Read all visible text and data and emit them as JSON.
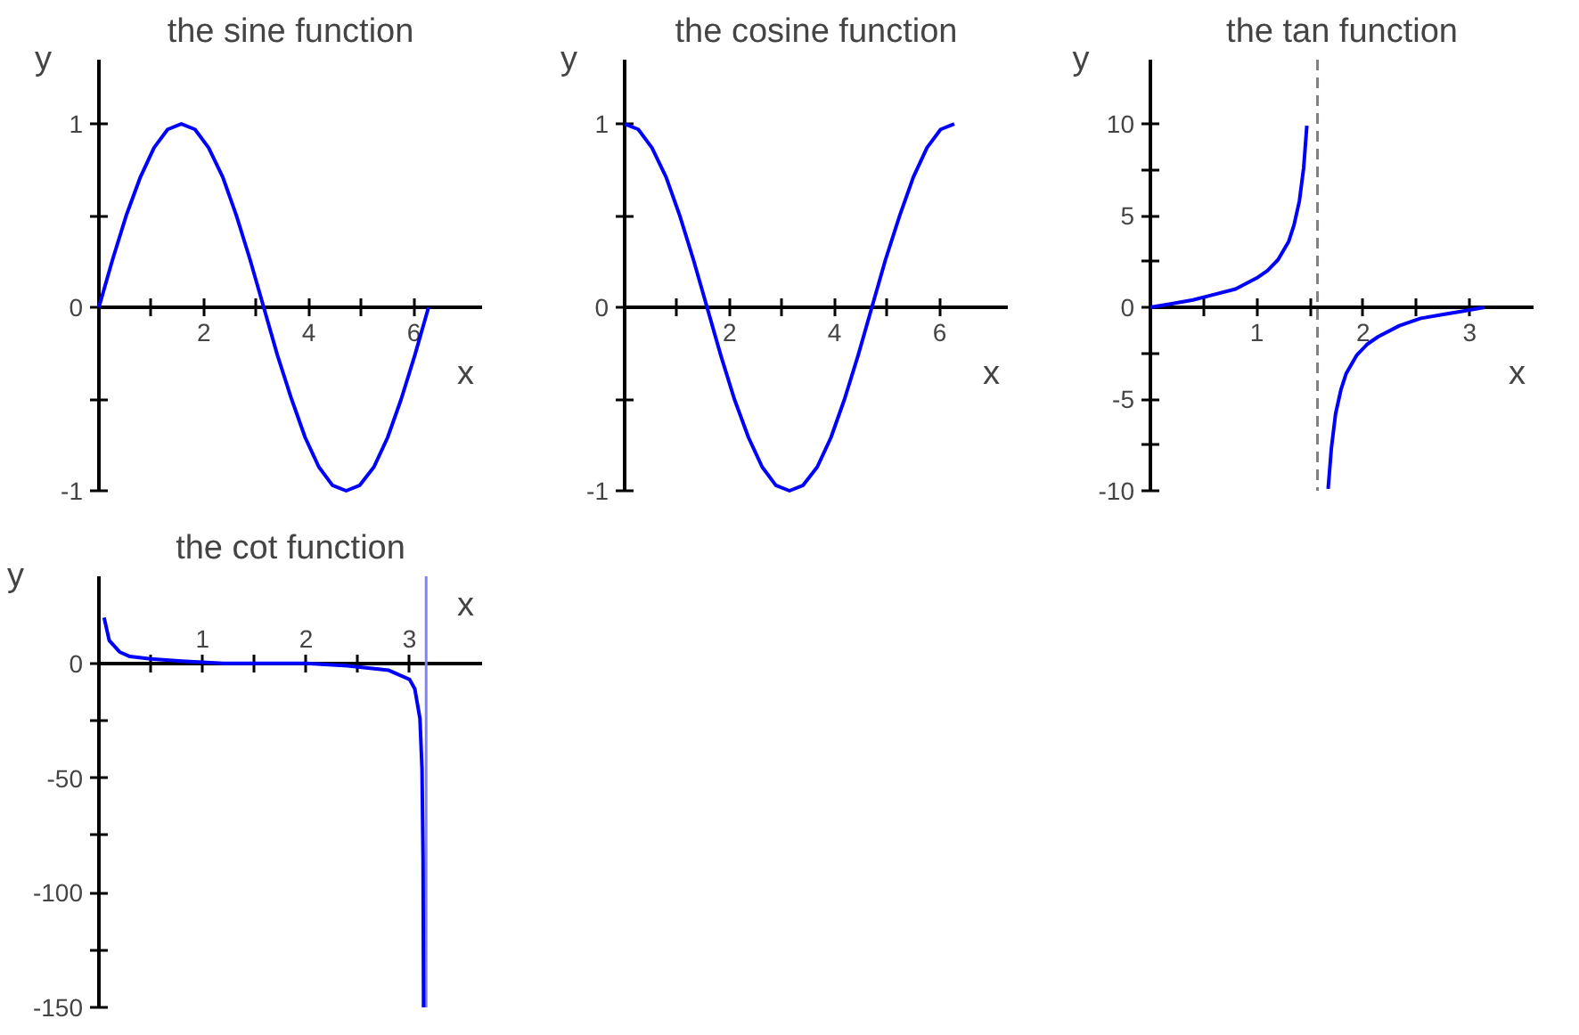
{
  "chart_data": [
    {
      "type": "line",
      "title": "the sine function",
      "xlabel": "x",
      "ylabel": "y",
      "xlim": [
        0,
        7.3
      ],
      "ylim": [
        -1,
        1.35
      ],
      "xticks": [
        {
          "value": 1,
          "label": null
        },
        2,
        {
          "value": 3,
          "label": null
        },
        4,
        {
          "value": 5,
          "label": null
        },
        6
      ],
      "yticks": [
        -1,
        {
          "value": -0.5,
          "label": null
        },
        0,
        {
          "value": 0.5,
          "label": null
        },
        1
      ],
      "series": [
        {
          "color": "#0000ff",
          "x": [
            0,
            0.26,
            0.52,
            0.79,
            1.05,
            1.31,
            1.57,
            1.83,
            2.09,
            2.36,
            2.62,
            2.88,
            3.14,
            3.4,
            3.67,
            3.93,
            4.19,
            4.45,
            4.71,
            4.97,
            5.24,
            5.5,
            5.76,
            6.02,
            6.28
          ],
          "values": [
            0,
            0.26,
            0.5,
            0.71,
            0.87,
            0.97,
            1,
            0.97,
            0.87,
            0.71,
            0.5,
            0.26,
            0,
            -0.26,
            -0.5,
            -0.71,
            -0.87,
            -0.97,
            -1,
            -0.97,
            -0.87,
            -0.71,
            -0.5,
            -0.26,
            0
          ]
        }
      ]
    },
    {
      "type": "line",
      "title": "the cosine function",
      "xlabel": "x",
      "ylabel": "y",
      "xlim": [
        0,
        7.3
      ],
      "ylim": [
        -1,
        1.35
      ],
      "xticks": [
        {
          "value": 1,
          "label": null
        },
        2,
        {
          "value": 3,
          "label": null
        },
        4,
        {
          "value": 5,
          "label": null
        },
        6
      ],
      "yticks": [
        -1,
        {
          "value": -0.5,
          "label": null
        },
        0,
        {
          "value": 0.5,
          "label": null
        },
        1
      ],
      "series": [
        {
          "color": "#0000ff",
          "x": [
            0,
            0.26,
            0.52,
            0.79,
            1.05,
            1.31,
            1.57,
            1.83,
            2.09,
            2.36,
            2.62,
            2.88,
            3.14,
            3.4,
            3.67,
            3.93,
            4.19,
            4.45,
            4.71,
            4.97,
            5.24,
            5.5,
            5.76,
            6.02,
            6.28
          ],
          "values": [
            1,
            0.97,
            0.87,
            0.71,
            0.5,
            0.26,
            0,
            -0.26,
            -0.5,
            -0.71,
            -0.87,
            -0.97,
            -1,
            -0.97,
            -0.87,
            -0.71,
            -0.5,
            -0.26,
            0,
            0.26,
            0.5,
            0.71,
            0.87,
            0.97,
            1
          ]
        }
      ]
    },
    {
      "type": "line",
      "title": "the tan function",
      "xlabel": "x",
      "ylabel": "y",
      "xlim": [
        0,
        3.6
      ],
      "ylim": [
        -10,
        13.5
      ],
      "xticks": [
        {
          "value": 0.5,
          "label": null
        },
        1,
        {
          "value": 1.5,
          "label": null
        },
        2,
        {
          "value": 2.5,
          "label": null
        },
        3
      ],
      "yticks": [
        -10,
        {
          "value": -7.5,
          "label": null
        },
        -5,
        {
          "value": -2.5,
          "label": null
        },
        0,
        {
          "value": 2.5,
          "label": null
        },
        5,
        {
          "value": 7.5,
          "label": null
        },
        10
      ],
      "ref_lines": [
        {
          "axis": "x",
          "value": 1.57,
          "color": "#808080",
          "line_style": "dashed"
        }
      ],
      "series": [
        {
          "color": "#0000ff",
          "x": [
            0,
            0.2,
            0.4,
            0.6,
            0.8,
            1.0,
            1.1,
            1.2,
            1.3,
            1.35,
            1.4,
            1.44,
            1.47,
            1.57,
            1.67,
            1.7,
            1.74,
            1.79,
            1.84,
            1.94,
            2.04,
            2.14,
            2.34,
            2.54,
            2.74,
            2.94,
            3.14
          ],
          "values": [
            0,
            0.2,
            0.4,
            0.7,
            1.0,
            1.6,
            2.0,
            2.6,
            3.6,
            4.5,
            5.8,
            7.6,
            9.9,
            null,
            -9.9,
            -7.7,
            -5.8,
            -4.5,
            -3.6,
            -2.6,
            -2.0,
            -1.6,
            -1.0,
            -0.6,
            -0.4,
            -0.2,
            0
          ]
        }
      ]
    },
    {
      "type": "line",
      "title": "the cot function",
      "xlabel": "x",
      "ylabel": "y",
      "xlim": [
        0,
        3.7
      ],
      "ylim": [
        -150,
        38
      ],
      "xticks": [
        {
          "value": 0.5,
          "label": null
        },
        1,
        {
          "value": 1.5,
          "label": null
        },
        2,
        {
          "value": 2.5,
          "label": null
        },
        3
      ],
      "yticks": [
        -150,
        {
          "value": -125,
          "label": null
        },
        -100,
        {
          "value": -75,
          "label": null
        },
        -50,
        {
          "value": -25,
          "label": null
        },
        0
      ],
      "ref_lines": [
        {
          "axis": "x",
          "value": 3.16,
          "color": "#8080ff",
          "line_style": "solid"
        }
      ],
      "series": [
        {
          "color": "#0000ff",
          "x": [
            0.05,
            0.1,
            0.2,
            0.3,
            0.5,
            0.8,
            1.2,
            1.6,
            2.0,
            2.4,
            2.8,
            3.0,
            3.05,
            3.1,
            3.12,
            3.13,
            3.135
          ],
          "values": [
            20,
            10,
            5,
            3,
            2,
            1,
            0,
            0,
            0,
            -1,
            -3,
            -7,
            -11,
            -24,
            -46,
            -85,
            -150
          ]
        }
      ]
    }
  ]
}
